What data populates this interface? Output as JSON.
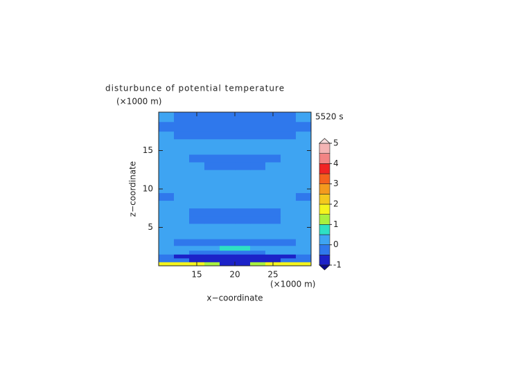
{
  "chart_data": {
    "type": "contour",
    "title": "disturbunce of potential temperature",
    "time_label": "5520 s",
    "xlabel": "x−coordinate",
    "ylabel": "z−coordinate",
    "x_unit": "(×1000 m)",
    "y_unit": "(×1000 m)",
    "xlim": [
      10,
      30
    ],
    "ylim": [
      0,
      20
    ],
    "xticks": [
      15,
      20,
      25
    ],
    "yticks": [
      5,
      10,
      15
    ],
    "x": [
      11,
      13,
      15,
      17,
      19,
      21,
      23,
      25,
      27,
      29
    ],
    "z": [
      0.25,
      0.75,
      1.25,
      1.75,
      2.25,
      3,
      4,
      5,
      6,
      7,
      8,
      9,
      10,
      11,
      12,
      13,
      14,
      15,
      16,
      17,
      18,
      19.5
    ],
    "values": [
      [
        1.8,
        1.8,
        1.8,
        1.2,
        -0.7,
        -0.7,
        1.2,
        1.8,
        1.8,
        1.8
      ],
      [
        -0.3,
        -0.3,
        -0.7,
        -0.7,
        -0.7,
        -0.7,
        -0.7,
        -0.7,
        -0.3,
        -0.3
      ],
      [
        -0.3,
        -0.7,
        -0.7,
        -0.7,
        -0.7,
        -0.7,
        -0.7,
        -0.7,
        -0.7,
        -0.3
      ],
      [
        0.1,
        0.1,
        -0.2,
        -0.2,
        -0.2,
        -0.2,
        -0.2,
        0.1,
        0.1,
        0.1
      ],
      [
        0.1,
        0.1,
        0.1,
        0.1,
        0.7,
        0.7,
        0.1,
        0.1,
        0.1,
        0.1
      ],
      [
        0.1,
        -0.2,
        -0.2,
        -0.2,
        -0.2,
        -0.2,
        -0.2,
        -0.2,
        -0.2,
        0.1
      ],
      [
        0.1,
        0.1,
        0.1,
        0.1,
        0.1,
        0.1,
        0.1,
        0.1,
        0.1,
        0.1
      ],
      [
        0.1,
        0.1,
        0.1,
        0.1,
        0.1,
        0.1,
        0.1,
        0.1,
        0.1,
        0.1
      ],
      [
        0.1,
        0.1,
        -0.2,
        -0.2,
        -0.2,
        -0.2,
        -0.2,
        -0.2,
        0.1,
        0.1
      ],
      [
        0.1,
        0.1,
        -0.2,
        -0.2,
        -0.2,
        -0.2,
        -0.2,
        -0.2,
        0.1,
        0.1
      ],
      [
        0.1,
        0.1,
        0.1,
        0.1,
        0.1,
        0.1,
        0.1,
        0.1,
        0.1,
        0.1
      ],
      [
        -0.2,
        0.1,
        0.1,
        0.1,
        0.1,
        0.1,
        0.1,
        0.1,
        0.1,
        -0.2
      ],
      [
        0.1,
        0.1,
        0.1,
        0.1,
        0.1,
        0.1,
        0.1,
        0.1,
        0.1,
        0.1
      ],
      [
        0.1,
        0.1,
        0.1,
        0.1,
        0.1,
        0.1,
        0.1,
        0.1,
        0.1,
        0.1
      ],
      [
        0.1,
        0.1,
        0.1,
        0.1,
        0.1,
        0.1,
        0.1,
        0.1,
        0.1,
        0.1
      ],
      [
        0.1,
        0.1,
        0.1,
        -0.2,
        -0.2,
        -0.2,
        -0.2,
        0.1,
        0.1,
        0.1
      ],
      [
        0.1,
        0.1,
        -0.2,
        -0.2,
        -0.2,
        -0.2,
        -0.2,
        -0.2,
        0.1,
        0.1
      ],
      [
        0.1,
        0.1,
        0.1,
        0.1,
        0.1,
        0.1,
        0.1,
        0.1,
        0.1,
        0.1
      ],
      [
        0.1,
        0.1,
        0.1,
        0.1,
        0.1,
        0.1,
        0.1,
        0.1,
        0.1,
        0.1
      ],
      [
        0.1,
        -0.2,
        -0.2,
        -0.2,
        -0.2,
        -0.2,
        -0.2,
        -0.2,
        -0.2,
        0.1
      ],
      [
        -0.2,
        -0.2,
        -0.2,
        -0.2,
        -0.2,
        -0.2,
        -0.2,
        -0.2,
        -0.2,
        -0.2
      ],
      [
        0.1,
        -0.2,
        -0.2,
        -0.2,
        -0.2,
        -0.2,
        -0.2,
        -0.2,
        -0.2,
        0.1
      ]
    ],
    "levels": [
      -1,
      -0.5,
      0,
      0.5,
      1,
      1.5,
      2,
      2.5,
      3,
      3.5,
      4,
      4.5,
      5
    ],
    "colors": [
      "#1c22c8",
      "#2f78ec",
      "#3ea4f2",
      "#2ee0c4",
      "#a8f040",
      "#f4f41e",
      "#f4c81e",
      "#f49a1e",
      "#f4621e",
      "#f02424",
      "#f28484",
      "#f4b4b4"
    ],
    "under_color": "#0a0a8c",
    "over_color": "#f8dede",
    "cbar_ticks": [
      -1,
      0,
      1,
      2,
      3,
      4,
      5
    ]
  }
}
